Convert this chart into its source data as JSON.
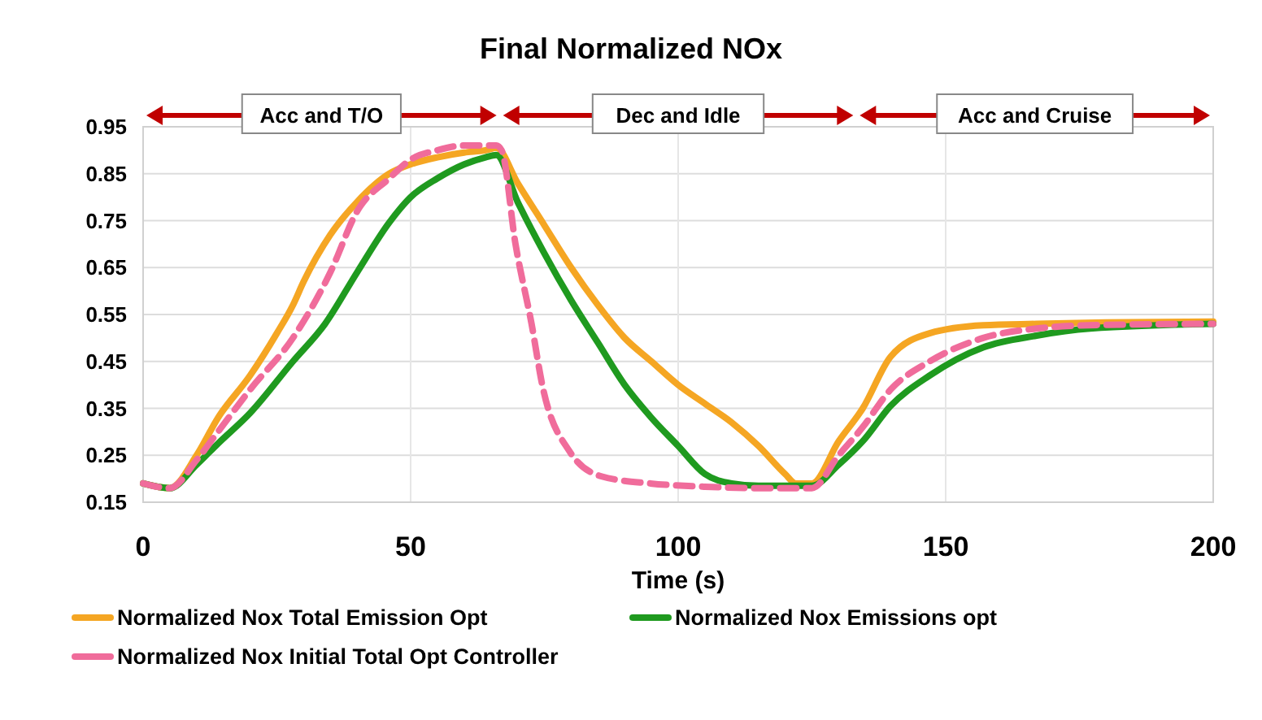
{
  "chart_data": {
    "type": "line",
    "title": "Final Normalized NOx",
    "xlabel": "Time (s)",
    "xlim": [
      0,
      200
    ],
    "xticks": [
      0,
      50,
      100,
      150,
      200
    ],
    "ylim": [
      0.15,
      0.95
    ],
    "yticks": [
      0.15,
      0.25,
      0.35,
      0.45,
      0.55,
      0.65,
      0.75,
      0.85,
      0.95
    ],
    "grid": true,
    "legend": "bottom",
    "marker": "none",
    "annotations": [
      "Acc and T/O",
      "Dec and Idle",
      "Acc and Cruise"
    ],
    "series": [
      {
        "name": "Normalized Nox Total Emission Opt",
        "color": "#f5a623",
        "line_style": "solid",
        "x": [
          0,
          5,
          10,
          14,
          20,
          25,
          28,
          30,
          35,
          40,
          46,
          50,
          55,
          60,
          64,
          66,
          70,
          75,
          80,
          85,
          90,
          95,
          100,
          105,
          110,
          115,
          120,
          122,
          125,
          130,
          134.5,
          139.7,
          147,
          157,
          167,
          180,
          200
        ],
        "values": [
          0.19,
          0.18,
          0.25,
          0.33,
          0.42,
          0.51,
          0.57,
          0.62,
          0.72,
          0.79,
          0.85,
          0.87,
          0.885,
          0.895,
          0.9,
          0.905,
          0.83,
          0.74,
          0.65,
          0.57,
          0.5,
          0.45,
          0.4,
          0.36,
          0.32,
          0.27,
          0.21,
          0.19,
          0.19,
          0.28,
          0.35,
          0.46,
          0.51,
          0.527,
          0.53,
          0.533,
          0.535
        ]
      },
      {
        "name": "Normalized Nox Emissions opt",
        "color": "#1f9a1f",
        "line_style": "solid",
        "x": [
          0,
          5,
          10,
          14,
          20,
          28,
          34,
          40,
          46,
          50,
          55,
          60,
          64,
          66,
          70,
          75,
          80,
          85,
          90,
          95,
          100,
          105,
          110,
          115,
          125,
          130,
          134.5,
          139.7,
          147,
          157,
          167,
          177,
          200
        ],
        "values": [
          0.19,
          0.18,
          0.23,
          0.275,
          0.34,
          0.45,
          0.53,
          0.64,
          0.746,
          0.8,
          0.84,
          0.87,
          0.885,
          0.89,
          0.79,
          0.68,
          0.58,
          0.49,
          0.4,
          0.33,
          0.27,
          0.21,
          0.19,
          0.185,
          0.185,
          0.23,
          0.28,
          0.355,
          0.42,
          0.48,
          0.505,
          0.52,
          0.53
        ]
      },
      {
        "name": "Normalized Nox Initial Total Opt Controller",
        "color": "#f06c9b",
        "line_style": "dashed",
        "x": [
          0,
          5,
          10,
          14,
          20,
          28,
          35,
          40,
          46,
          50,
          55,
          60,
          66,
          67,
          69.6,
          72.6,
          74.6,
          79.6,
          85.7,
          94.8,
          105,
          115,
          125,
          130,
          134.5,
          139.7,
          147,
          157,
          167,
          180,
          200
        ],
        "values": [
          0.19,
          0.18,
          0.24,
          0.3,
          0.39,
          0.5,
          0.64,
          0.77,
          0.84,
          0.88,
          0.9,
          0.91,
          0.91,
          0.9,
          0.7,
          0.53,
          0.4,
          0.26,
          0.205,
          0.19,
          0.183,
          0.18,
          0.18,
          0.25,
          0.31,
          0.39,
          0.45,
          0.5,
          0.52,
          0.528,
          0.53
        ]
      }
    ]
  }
}
